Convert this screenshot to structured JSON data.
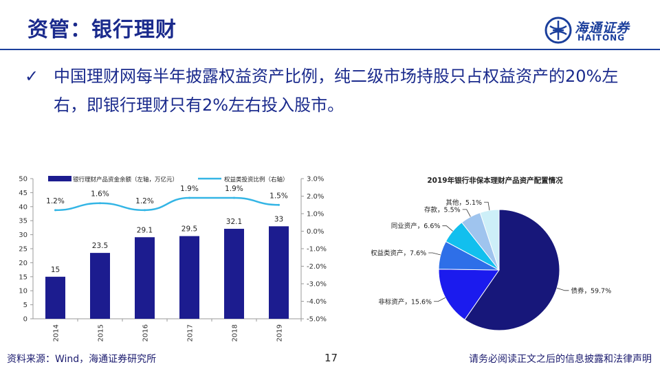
{
  "header": {
    "title": "资管：银行理财",
    "logo_cn": "海通证券",
    "logo_en": "HAITONG"
  },
  "bullet": {
    "mark": "✓",
    "text": "中国理财网每半年披露权益资产比例，纯二级市场持股只占权益资产的20%左右，即银行理财只有2%左右投入股市。"
  },
  "footer": {
    "source": "资料来源：Wind，海通证券研究所",
    "page": "17",
    "disclaimer": "请务必阅读正文之后的信息披露和法律声明"
  },
  "colors": {
    "title": "#1a2a8c",
    "bar": "#1c1c8f",
    "line": "#33b5e5"
  },
  "chart_data": [
    {
      "type": "bar",
      "categories": [
        "2014",
        "2015",
        "2016",
        "2017",
        "2018",
        "2019"
      ],
      "series": [
        {
          "name": "银行理财产品资金余额（左轴，万亿元）",
          "type": "bar",
          "axis": "left",
          "values": [
            15,
            23.5,
            29.1,
            29.5,
            32.1,
            33
          ],
          "labels": [
            "15",
            "23.5",
            "29.1",
            "29.5",
            "32.1",
            "33"
          ]
        },
        {
          "name": "权益类投资比例（右轴）",
          "type": "line",
          "axis": "right",
          "values": [
            1.2,
            1.6,
            1.2,
            1.9,
            1.9,
            1.5
          ],
          "labels": [
            "1.2%",
            "1.6%",
            "1.2%",
            "1.9%",
            "1.9%",
            "1.5%"
          ]
        }
      ],
      "yleft": {
        "min": 0,
        "max": 50,
        "ticks": [
          "0",
          "5",
          "10",
          "15",
          "20",
          "25",
          "30",
          "35",
          "40",
          "45",
          "50"
        ]
      },
      "yright": {
        "min": -5,
        "max": 3,
        "ticks": [
          "-5.0%",
          "-4.0%",
          "-3.0%",
          "-2.0%",
          "-1.0%",
          "0.0%",
          "1.0%",
          "2.0%",
          "3.0%"
        ]
      },
      "legend": "top",
      "grid": false
    },
    {
      "type": "pie",
      "title": "2019年银行非保本理财产品资产配置情况",
      "slices": [
        {
          "name": "债券",
          "value": 59.7,
          "label": "债券，59.7%",
          "color": "#17177a"
        },
        {
          "name": "非标资产",
          "value": 15.6,
          "label": "非标资产，15.6%",
          "color": "#1b1bee"
        },
        {
          "name": "权益类资产",
          "value": 7.6,
          "label": "权益类资产，7.6%",
          "color": "#2e6fe8"
        },
        {
          "name": "同业资产",
          "value": 6.6,
          "label": "同业资产，6.6%",
          "color": "#12bfee"
        },
        {
          "name": "存款",
          "value": 5.5,
          "label": "存款，5.5%",
          "color": "#9fc4ee"
        },
        {
          "name": "其他",
          "value": 5.1,
          "label": "其他，5.1%",
          "color": "#cdeff8"
        }
      ]
    }
  ]
}
